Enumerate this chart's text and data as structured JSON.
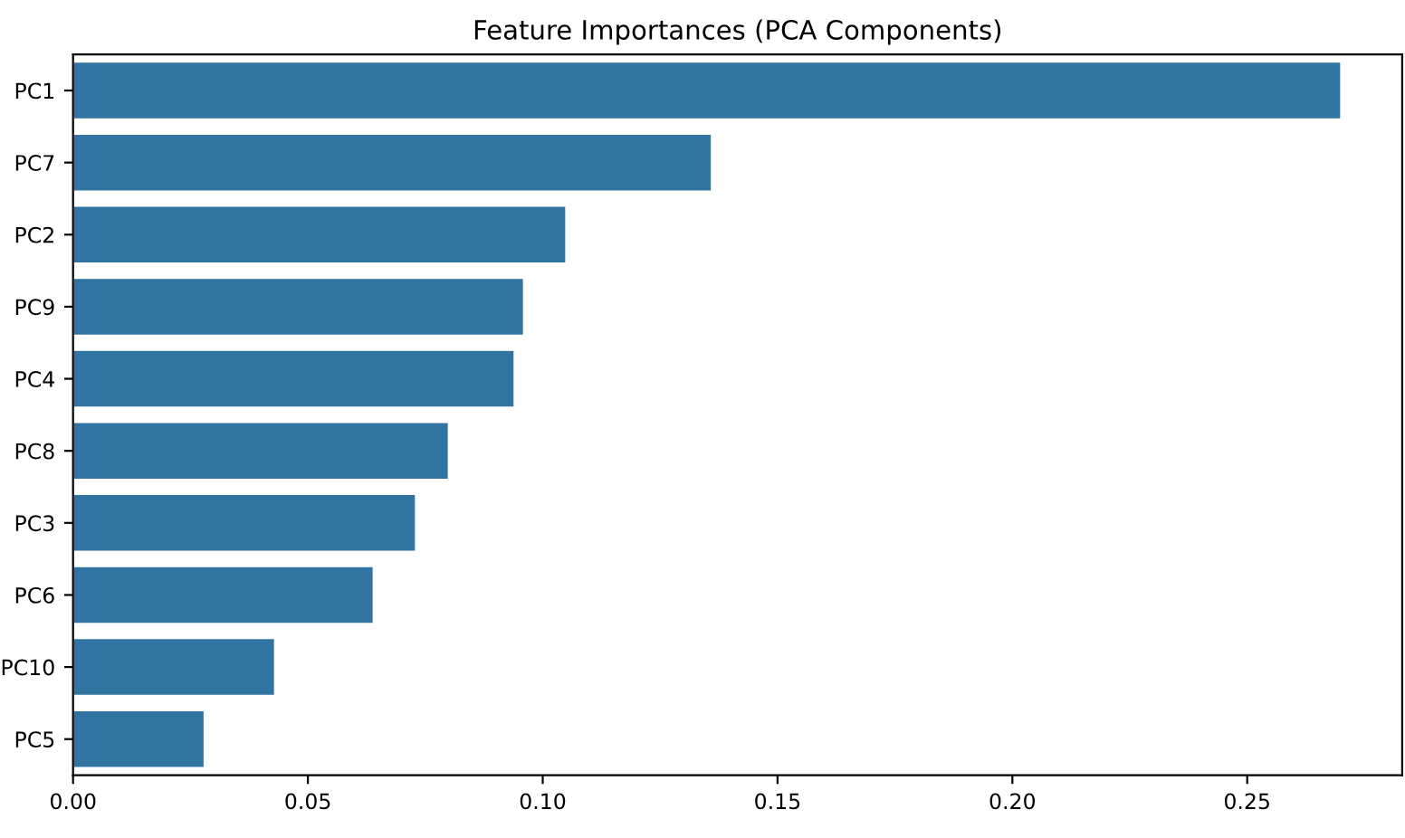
{
  "chart_data": {
    "type": "bar",
    "orientation": "horizontal",
    "title": "Feature Importances (PCA Components)",
    "categories": [
      "PC1",
      "PC7",
      "PC2",
      "PC9",
      "PC4",
      "PC8",
      "PC3",
      "PC6",
      "PC10",
      "PC5"
    ],
    "values": [
      0.27,
      0.136,
      0.105,
      0.096,
      0.094,
      0.08,
      0.073,
      0.064,
      0.043,
      0.028
    ],
    "color": "#3274a1",
    "xlim": [
      0,
      0.283
    ],
    "xticks": [
      {
        "value": 0,
        "label": "0.00"
      },
      {
        "value": 0.05,
        "label": "0.05"
      },
      {
        "value": 0.1,
        "label": "0.10"
      },
      {
        "value": 0.15,
        "label": "0.15"
      },
      {
        "value": 0.2,
        "label": "0.20"
      },
      {
        "value": 0.25,
        "label": "0.25"
      }
    ],
    "grid": false,
    "legend": false
  }
}
